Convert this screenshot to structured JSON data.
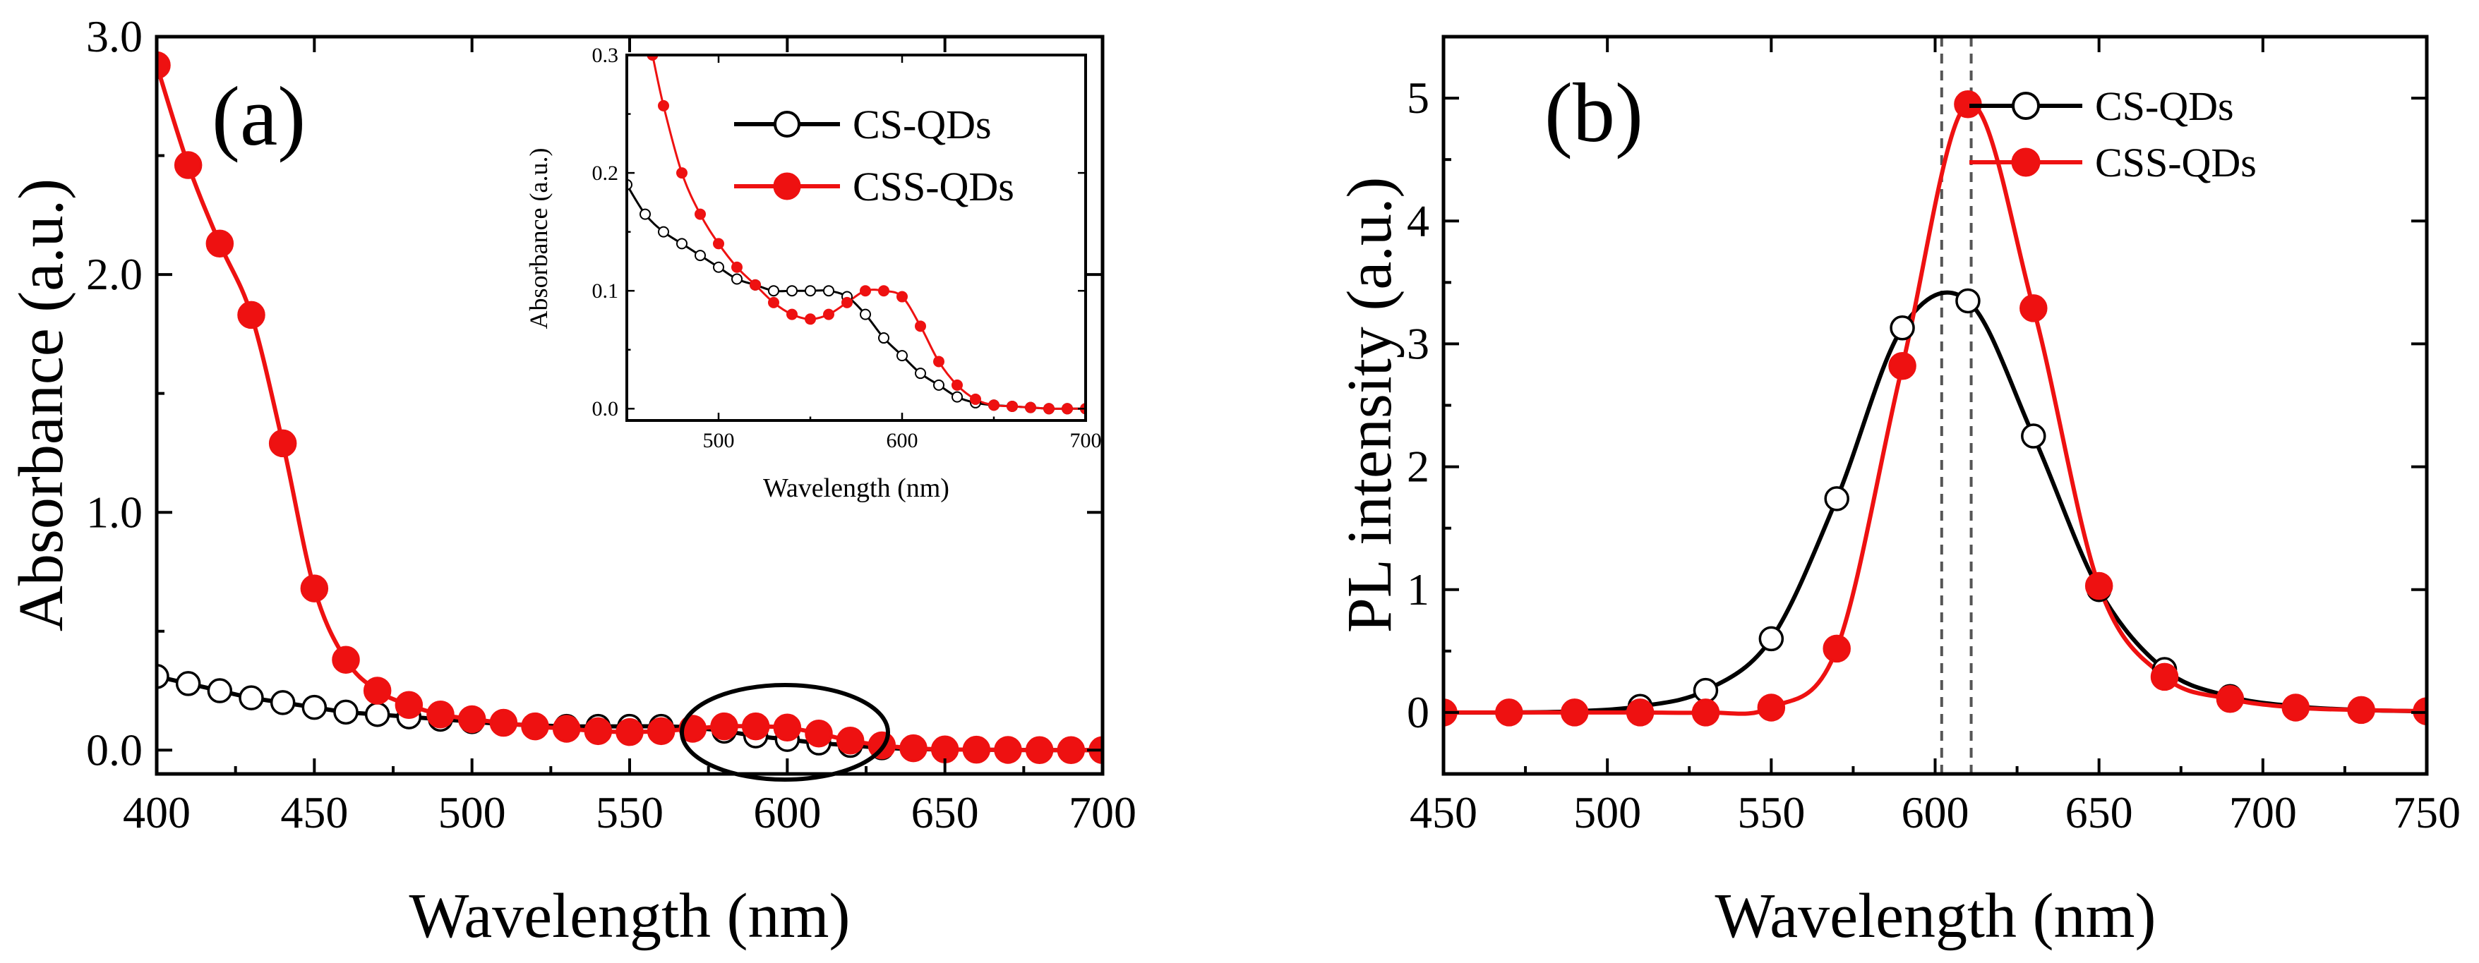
{
  "colors": {
    "cs": "#000000",
    "css": "#ee1111",
    "axis": "#000000"
  },
  "chart_data": [
    {
      "id": "a",
      "panel_label": "(a)",
      "type": "line",
      "title": "",
      "xlabel": "Wavelength (nm)",
      "ylabel": "Absorbance (a.u.)",
      "xlim": [
        400,
        700
      ],
      "ylim": [
        -0.1,
        3.0
      ],
      "xticks": [
        400,
        450,
        500,
        550,
        600,
        650,
        700
      ],
      "yticks": [
        0.0,
        1.0,
        2.0,
        3.0
      ],
      "ytick_labels": [
        "0.0",
        "1.0",
        "2.0",
        "3.0"
      ],
      "annotation": "ellipse around 570–630 nm region",
      "series": [
        {
          "name": "CS-QDs",
          "marker": "open-circle",
          "x": [
            400,
            410,
            420,
            430,
            440,
            450,
            460,
            470,
            480,
            490,
            500,
            510,
            520,
            530,
            540,
            550,
            560,
            570,
            580,
            590,
            600,
            610,
            620,
            630,
            640,
            650,
            660,
            670,
            680,
            690,
            700
          ],
          "y": [
            0.31,
            0.28,
            0.25,
            0.22,
            0.2,
            0.18,
            0.16,
            0.15,
            0.14,
            0.13,
            0.12,
            0.11,
            0.105,
            0.1,
            0.1,
            0.1,
            0.1,
            0.095,
            0.08,
            0.06,
            0.045,
            0.03,
            0.02,
            0.01,
            0.005,
            0.003,
            0.002,
            0.001,
            0.0,
            0.0,
            0.0
          ]
        },
        {
          "name": "CSS-QDs",
          "marker": "filled-circle",
          "x": [
            400,
            410,
            420,
            430,
            440,
            450,
            460,
            470,
            480,
            490,
            500,
            510,
            520,
            530,
            540,
            550,
            560,
            570,
            580,
            590,
            600,
            610,
            620,
            630,
            640,
            650,
            660,
            670,
            680,
            690,
            700
          ],
          "y": [
            2.88,
            2.46,
            2.13,
            1.83,
            1.29,
            0.68,
            0.38,
            0.25,
            0.19,
            0.15,
            0.13,
            0.115,
            0.1,
            0.09,
            0.08,
            0.076,
            0.08,
            0.09,
            0.1,
            0.1,
            0.095,
            0.07,
            0.04,
            0.02,
            0.008,
            0.003,
            0.002,
            0.001,
            0.0,
            0.0,
            0.0
          ]
        }
      ]
    },
    {
      "id": "inset",
      "panel_label": "",
      "type": "line",
      "title": "",
      "xlabel": "Wavelength (nm)",
      "ylabel": "Absorbance (a.u.)",
      "xlim": [
        450,
        700
      ],
      "ylim": [
        -0.01,
        0.3
      ],
      "xticks": [
        500,
        600,
        700
      ],
      "yticks": [
        0.0,
        0.1,
        0.2,
        0.3
      ],
      "ytick_labels": [
        "0.0",
        "0.1",
        "0.2",
        "0.3"
      ],
      "series": [
        {
          "name": "CS-QDs",
          "marker": "open-circle",
          "x": [
            450,
            460,
            470,
            480,
            490,
            500,
            510,
            520,
            530,
            540,
            550,
            560,
            570,
            580,
            590,
            600,
            610,
            620,
            630,
            640,
            650,
            660,
            670,
            680,
            690,
            700
          ],
          "y": [
            0.19,
            0.165,
            0.15,
            0.14,
            0.13,
            0.12,
            0.11,
            0.105,
            0.1,
            0.1,
            0.1,
            0.1,
            0.095,
            0.08,
            0.06,
            0.045,
            0.03,
            0.02,
            0.01,
            0.005,
            0.003,
            0.002,
            0.001,
            0.0,
            0.0,
            0.0
          ]
        },
        {
          "name": "CSS-QDs",
          "marker": "filled-circle",
          "x": [
            464,
            470,
            480,
            490,
            500,
            510,
            520,
            530,
            540,
            550,
            560,
            570,
            580,
            590,
            600,
            610,
            620,
            630,
            640,
            650,
            660,
            670,
            680,
            690,
            700
          ],
          "y": [
            0.3,
            0.257,
            0.2,
            0.165,
            0.14,
            0.12,
            0.105,
            0.09,
            0.08,
            0.076,
            0.08,
            0.09,
            0.1,
            0.1,
            0.095,
            0.07,
            0.04,
            0.02,
            0.008,
            0.003,
            0.002,
            0.001,
            0.0,
            0.0,
            0.0
          ]
        }
      ]
    },
    {
      "id": "b",
      "panel_label": "(b)",
      "type": "line",
      "title": "",
      "xlabel": "Wavelength (nm)",
      "ylabel": "PL intensity (a.u.)",
      "xlim": [
        450,
        750
      ],
      "ylim": [
        -0.5,
        5.5
      ],
      "xticks": [
        450,
        500,
        550,
        600,
        650,
        700,
        750
      ],
      "yticks": [
        0,
        1,
        2,
        3,
        4,
        5
      ],
      "ytick_labels": [
        "0",
        "1",
        "2",
        "3",
        "4",
        "5"
      ],
      "reference_lines_x": [
        602,
        611
      ],
      "series": [
        {
          "name": "CS-QDs",
          "marker": "open-circle",
          "x": [
            450,
            470,
            490,
            510,
            530,
            550,
            570,
            590,
            610,
            630,
            650,
            670,
            690,
            710,
            730,
            750
          ],
          "y": [
            0.0,
            0.0,
            0.01,
            0.05,
            0.18,
            0.6,
            1.74,
            3.13,
            3.35,
            2.25,
            1.0,
            0.35,
            0.13,
            0.05,
            0.02,
            0.01
          ]
        },
        {
          "name": "CSS-QDs",
          "marker": "filled-circle",
          "x": [
            450,
            470,
            490,
            510,
            530,
            550,
            570,
            590,
            610,
            630,
            650,
            670,
            690,
            710,
            730,
            750
          ],
          "y": [
            0.0,
            0.0,
            0.0,
            0.0,
            0.0,
            0.04,
            0.52,
            2.82,
            4.95,
            3.29,
            1.03,
            0.29,
            0.11,
            0.04,
            0.02,
            0.01
          ]
        }
      ]
    }
  ]
}
